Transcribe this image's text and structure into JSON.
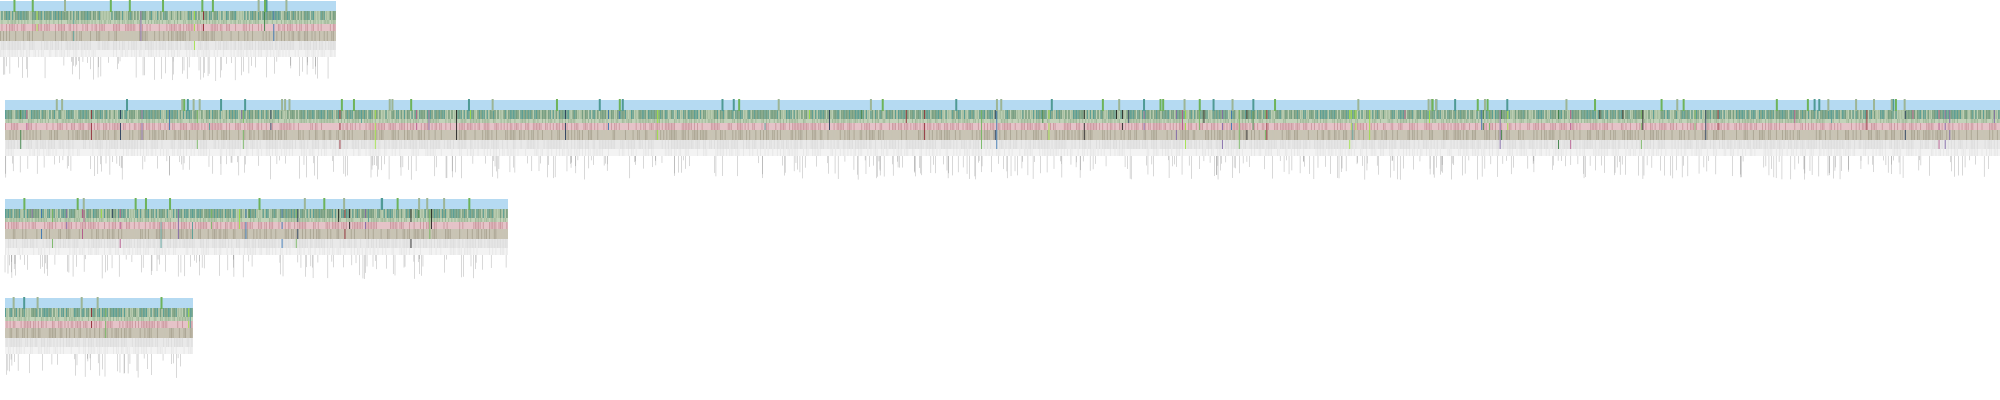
{
  "colors": {
    "background": "#ffffff",
    "header_band": "#b5daf2",
    "sage": "#9db596",
    "sage_light": "#c2d3b9",
    "teal": "#4f9a95",
    "green_bright": "#9be03c",
    "green_dark": "#2f7a3a",
    "green_mid": "#6eb35a",
    "rose": "#c9959c",
    "rose_light": "#e5c3c8",
    "magenta": "#b04f86",
    "purple": "#7a5fa3",
    "blue": "#2f6fb0",
    "navy": "#1d3557",
    "taupe": "#c9c4b5",
    "taupe_dark": "#a9a391",
    "grey_light": "#e9e9e9",
    "black": "#1a1a1a",
    "red_dark": "#8a1f2a",
    "stem": "#7f7f7f"
  },
  "panels": [
    {
      "id": "panel-1",
      "columns": 220,
      "seed": 11,
      "accent_rate": 0.05
    },
    {
      "id": "panel-2",
      "columns": 1300,
      "seed": 27,
      "accent_rate": 0.07
    },
    {
      "id": "panel-3",
      "columns": 320,
      "seed": 43,
      "accent_rate": 0.06
    },
    {
      "id": "panel-4",
      "columns": 120,
      "seed": 59,
      "accent_rate": 0.05
    }
  ]
}
